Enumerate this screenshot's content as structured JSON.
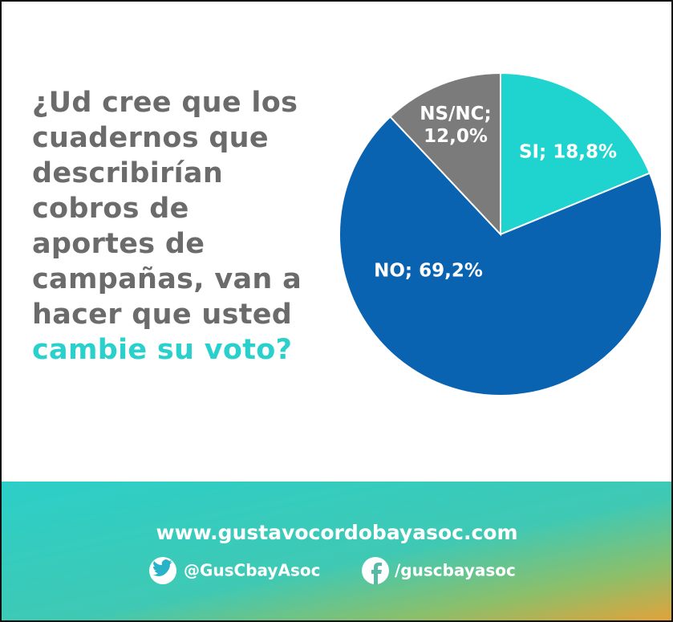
{
  "chart_data": {
    "type": "pie",
    "title": "¿Ud cree que los cuadernos que describirían cobros de aportes de campañas, van a hacer que usted",
    "title_highlight": "cambie su voto?",
    "values": [
      18.8,
      69.2,
      12.0
    ],
    "value_labels": [
      "SI; 18,8%",
      "NO; 69,2%",
      "NS/NC; 12,0%"
    ],
    "colors": [
      "#1fd3cf",
      "#0a63b0",
      "#7b7b7b"
    ]
  },
  "footer": {
    "website": "www.gustavocordobayasoc.com",
    "twitter": "@GusCbayAsoc",
    "facebook": "/guscbayasoc"
  }
}
